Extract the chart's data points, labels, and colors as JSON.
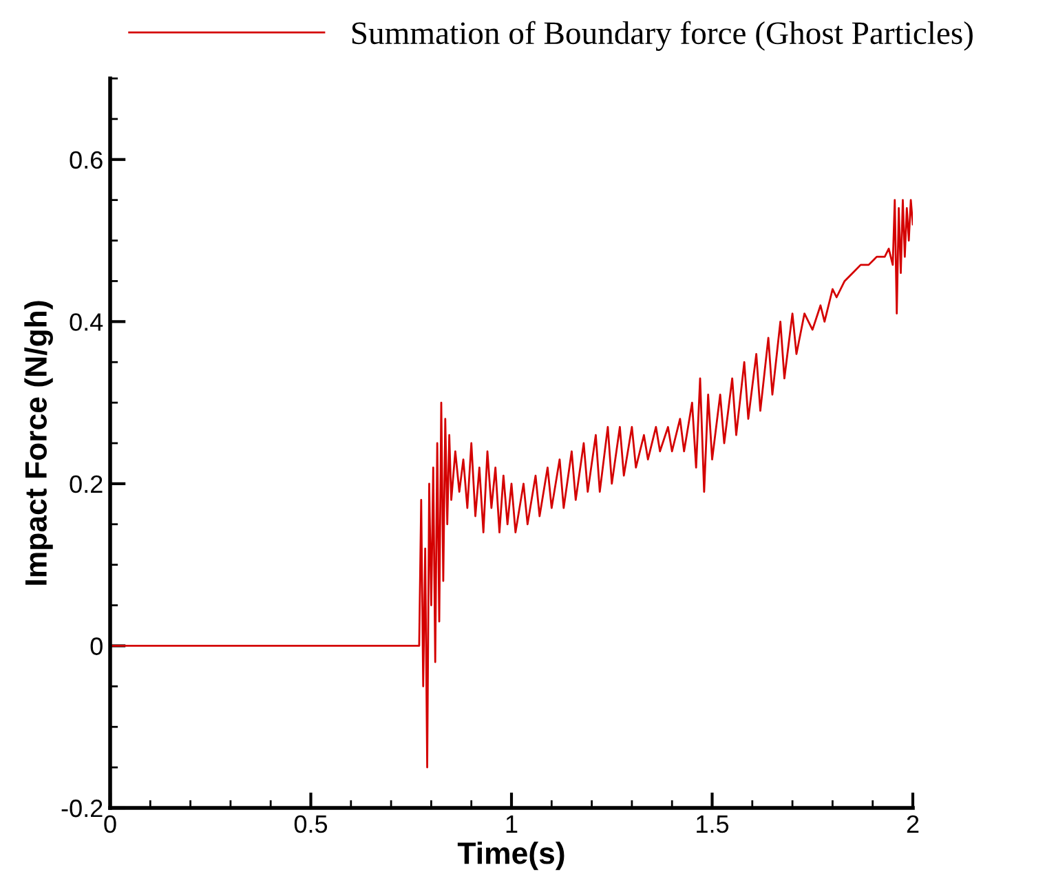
{
  "chart_data": {
    "type": "line",
    "xlabel": "Time(s)",
    "ylabel": "Impact Force (N/gh)",
    "xlim": [
      0,
      2
    ],
    "ylim": [
      -0.2,
      0.7
    ],
    "xticks": [
      0,
      0.5,
      1,
      1.5,
      2,
      {
        "value": 0.1,
        "label": null
      },
      {
        "value": 0.2,
        "label": null
      },
      {
        "value": 0.3,
        "label": null
      },
      {
        "value": 0.4,
        "label": null
      },
      {
        "value": 0.6,
        "label": null
      },
      {
        "value": 0.7,
        "label": null
      },
      {
        "value": 0.8,
        "label": null
      },
      {
        "value": 0.9,
        "label": null
      },
      {
        "value": 1.1,
        "label": null
      },
      {
        "value": 1.2,
        "label": null
      },
      {
        "value": 1.3,
        "label": null
      },
      {
        "value": 1.4,
        "label": null
      },
      {
        "value": 1.6,
        "label": null
      },
      {
        "value": 1.7,
        "label": null
      },
      {
        "value": 1.8,
        "label": null
      },
      {
        "value": 1.9,
        "label": null
      }
    ],
    "yticks": [
      -0.2,
      0,
      0.2,
      0.4,
      0.6,
      {
        "value": -0.15,
        "label": null
      },
      {
        "value": -0.1,
        "label": null
      },
      {
        "value": -0.05,
        "label": null
      },
      {
        "value": 0.05,
        "label": null
      },
      {
        "value": 0.1,
        "label": null
      },
      {
        "value": 0.15,
        "label": null
      },
      {
        "value": 0.25,
        "label": null
      },
      {
        "value": 0.3,
        "label": null
      },
      {
        "value": 0.35,
        "label": null
      },
      {
        "value": 0.45,
        "label": null
      },
      {
        "value": 0.5,
        "label": null
      },
      {
        "value": 0.55,
        "label": null
      },
      {
        "value": 0.65,
        "label": null
      },
      {
        "value": 0.7,
        "label": null
      }
    ],
    "grid": false,
    "legend": "top",
    "marker": "none",
    "line_style": "solid",
    "series": [
      {
        "name": "Summation of Boundary force (Ghost Particles)",
        "color": "#d40000",
        "x": [
          0,
          0.77,
          0.775,
          0.78,
          0.785,
          0.79,
          0.795,
          0.8,
          0.805,
          0.81,
          0.815,
          0.82,
          0.825,
          0.83,
          0.835,
          0.84,
          0.845,
          0.85,
          0.86,
          0.87,
          0.88,
          0.89,
          0.9,
          0.91,
          0.92,
          0.93,
          0.94,
          0.95,
          0.96,
          0.97,
          0.98,
          0.99,
          1.0,
          1.01,
          1.03,
          1.04,
          1.06,
          1.07,
          1.09,
          1.1,
          1.12,
          1.13,
          1.15,
          1.16,
          1.18,
          1.19,
          1.21,
          1.22,
          1.24,
          1.25,
          1.27,
          1.28,
          1.3,
          1.31,
          1.33,
          1.34,
          1.36,
          1.37,
          1.39,
          1.4,
          1.42,
          1.43,
          1.45,
          1.46,
          1.47,
          1.48,
          1.49,
          1.5,
          1.52,
          1.53,
          1.55,
          1.56,
          1.58,
          1.59,
          1.61,
          1.62,
          1.64,
          1.65,
          1.67,
          1.68,
          1.7,
          1.71,
          1.73,
          1.75,
          1.77,
          1.78,
          1.8,
          1.81,
          1.83,
          1.85,
          1.87,
          1.89,
          1.91,
          1.93,
          1.94,
          1.95,
          1.955,
          1.96,
          1.965,
          1.97,
          1.975,
          1.98,
          1.985,
          1.99,
          1.995,
          2.0
        ],
        "values": [
          0,
          0,
          0.18,
          -0.05,
          0.12,
          -0.15,
          0.2,
          0.05,
          0.22,
          -0.02,
          0.25,
          0.03,
          0.3,
          0.08,
          0.28,
          0.15,
          0.26,
          0.18,
          0.24,
          0.19,
          0.23,
          0.17,
          0.25,
          0.16,
          0.22,
          0.14,
          0.24,
          0.17,
          0.22,
          0.14,
          0.21,
          0.15,
          0.2,
          0.14,
          0.2,
          0.15,
          0.21,
          0.16,
          0.22,
          0.17,
          0.23,
          0.17,
          0.24,
          0.18,
          0.25,
          0.19,
          0.26,
          0.19,
          0.27,
          0.2,
          0.27,
          0.21,
          0.27,
          0.22,
          0.26,
          0.23,
          0.27,
          0.24,
          0.27,
          0.24,
          0.28,
          0.24,
          0.3,
          0.22,
          0.33,
          0.19,
          0.31,
          0.23,
          0.31,
          0.25,
          0.33,
          0.26,
          0.35,
          0.28,
          0.36,
          0.29,
          0.38,
          0.31,
          0.4,
          0.33,
          0.41,
          0.36,
          0.41,
          0.39,
          0.42,
          0.4,
          0.44,
          0.43,
          0.45,
          0.46,
          0.47,
          0.47,
          0.48,
          0.48,
          0.49,
          0.47,
          0.55,
          0.41,
          0.54,
          0.46,
          0.55,
          0.48,
          0.54,
          0.5,
          0.55,
          0.52
        ]
      }
    ]
  }
}
